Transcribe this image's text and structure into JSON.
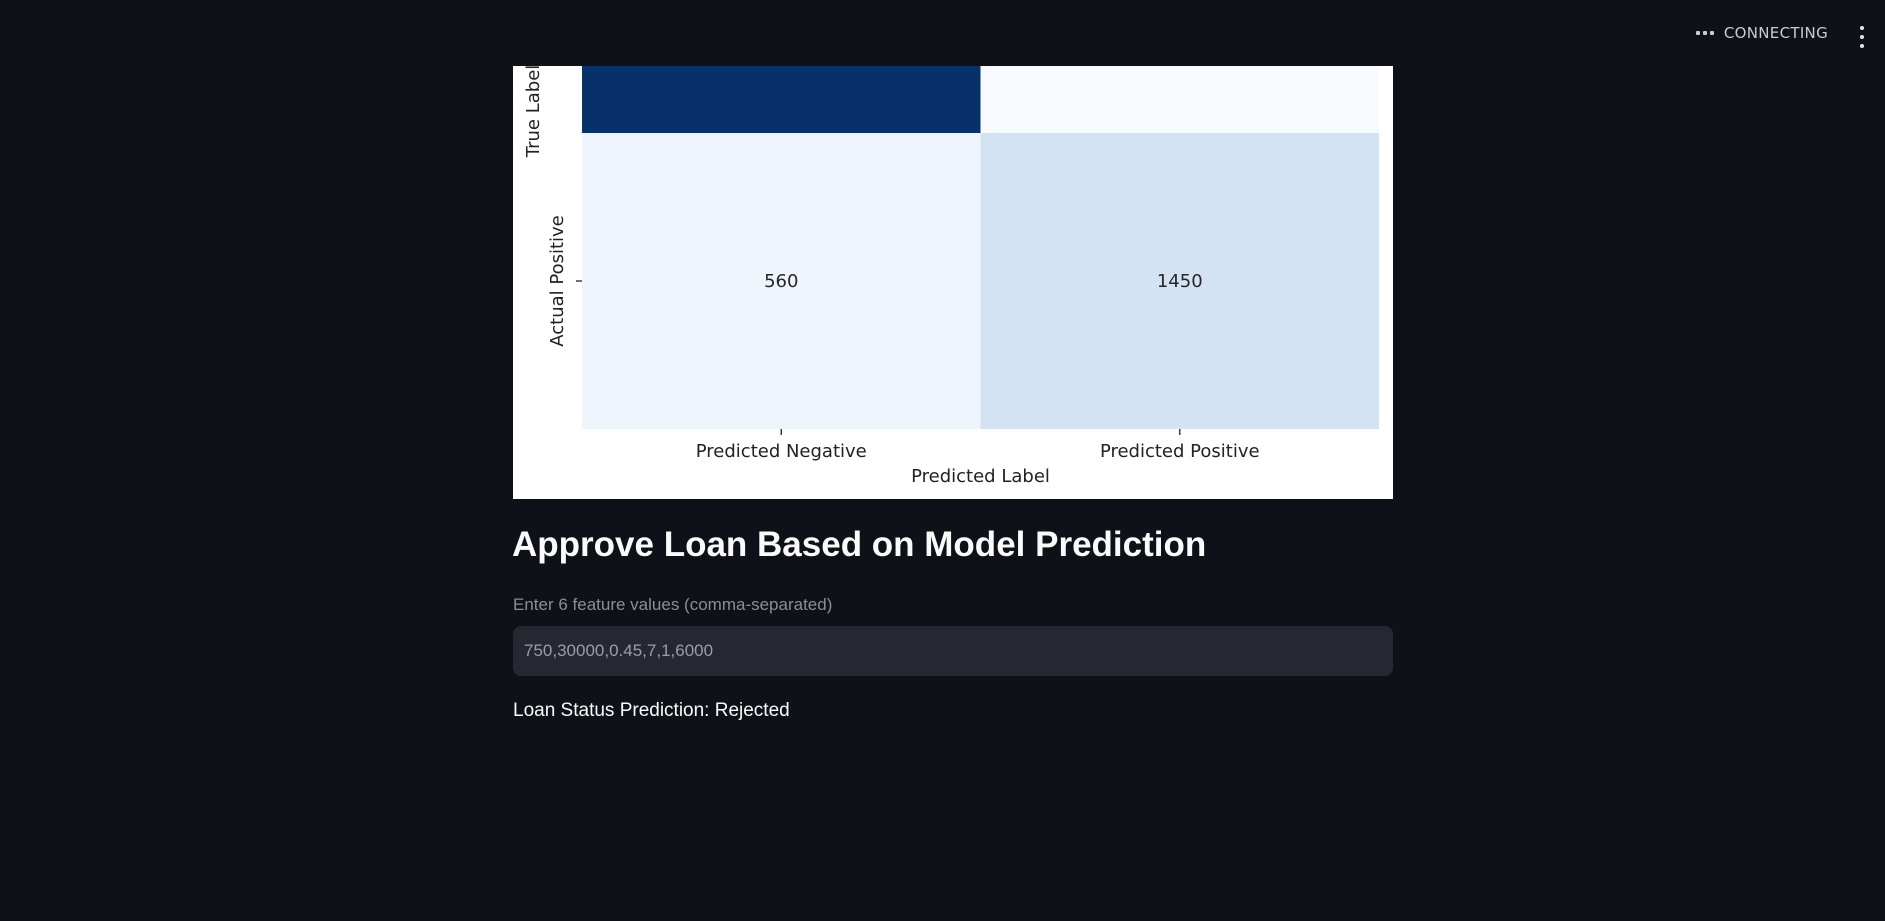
{
  "status": {
    "label": "CONNECTING",
    "icon": "ellipsis-icon"
  },
  "menu": {
    "icon": "kebab-menu-icon"
  },
  "chart_data": {
    "type": "heatmap",
    "x_categories": [
      "Predicted Negative",
      "Predicted Positive"
    ],
    "xlabel": "Predicted Label",
    "ylabel": "True Label",
    "y_categories_visible": [
      "Actual Positive"
    ],
    "cells": [
      {
        "row": "Actual Positive",
        "col": "Predicted Negative",
        "value": 560,
        "label": "560"
      },
      {
        "row": "Actual Positive",
        "col": "Predicted Positive",
        "value": 1450,
        "label": "1450"
      }
    ],
    "partial_top_row_colors": [
      "#08306b",
      "#f7fbff"
    ],
    "cell_colors": [
      "#eef5fc",
      "#d4e3f3"
    ],
    "colormap": "Blues",
    "grid": false
  },
  "form": {
    "heading": "Approve Loan Based on Model Prediction",
    "input_label": "Enter 6 feature values (comma-separated)",
    "input_value": "750,30000,0.45,7,1,6000",
    "result_text": "Loan Status Prediction: Rejected"
  },
  "colors": {
    "background": "#0e1117",
    "input_background": "#262730",
    "text": "#fafafa",
    "muted_text": "#8a8e97"
  }
}
